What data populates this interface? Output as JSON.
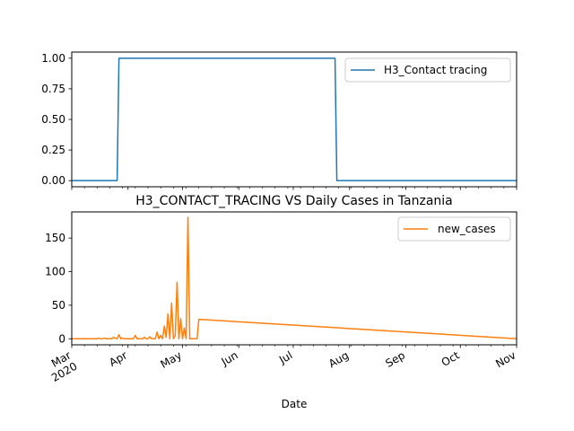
{
  "chart_data": [
    {
      "type": "line",
      "title": "",
      "xlabel": "",
      "ylabel": "",
      "x_range": [
        "2020-03-01",
        "2020-11-01"
      ],
      "ylim": [
        -0.05,
        1.05
      ],
      "yticks": [
        "0.00",
        "0.25",
        "0.50",
        "0.75",
        "1.00"
      ],
      "ytick_values": [
        0,
        0.25,
        0.5,
        0.75,
        1.0
      ],
      "grid": false,
      "legend_position": "top-right",
      "series": [
        {
          "name": "H3_Contact tracing",
          "color": "#1f77b4",
          "x": [
            "2020-03-01",
            "2020-03-26",
            "2020-03-27",
            "2020-07-24",
            "2020-07-25",
            "2020-11-01"
          ],
          "values": [
            0,
            0,
            1,
            1,
            0,
            0
          ]
        }
      ]
    },
    {
      "type": "line",
      "title": "H3_CONTACT_TRACING VS Daily Cases in Tanzania",
      "xlabel": "Date",
      "ylabel": "",
      "x_range": [
        "2020-03-01",
        "2020-11-01"
      ],
      "ylim": [
        -9,
        189
      ],
      "yticks": [
        "0",
        "50",
        "100",
        "150"
      ],
      "ytick_values": [
        0,
        50,
        100,
        150
      ],
      "xtick_labels": [
        "Mar\n2020",
        "Apr",
        "May",
        "Jun",
        "Jul",
        "Aug",
        "Sep",
        "Oct",
        "Nov"
      ],
      "xtick_dates": [
        "2020-03-01",
        "2020-04-01",
        "2020-05-01",
        "2020-06-01",
        "2020-07-01",
        "2020-08-01",
        "2020-09-01",
        "2020-10-01",
        "2020-11-01"
      ],
      "grid": false,
      "legend_position": "top-right",
      "series": [
        {
          "name": "new_cases",
          "color": "#ff7f0e",
          "x": [
            "2020-03-01",
            "2020-03-15",
            "2020-03-16",
            "2020-03-17",
            "2020-03-18",
            "2020-03-19",
            "2020-03-20",
            "2020-03-21",
            "2020-03-22",
            "2020-03-23",
            "2020-03-24",
            "2020-03-25",
            "2020-03-26",
            "2020-03-27",
            "2020-03-28",
            "2020-03-29",
            "2020-03-30",
            "2020-03-31",
            "2020-04-01",
            "2020-04-02",
            "2020-04-03",
            "2020-04-04",
            "2020-04-05",
            "2020-04-06",
            "2020-04-07",
            "2020-04-08",
            "2020-04-09",
            "2020-04-10",
            "2020-04-11",
            "2020-04-12",
            "2020-04-13",
            "2020-04-14",
            "2020-04-15",
            "2020-04-16",
            "2020-04-17",
            "2020-04-18",
            "2020-04-19",
            "2020-04-20",
            "2020-04-21",
            "2020-04-22",
            "2020-04-23",
            "2020-04-24",
            "2020-04-25",
            "2020-04-26",
            "2020-04-27",
            "2020-04-28",
            "2020-04-29",
            "2020-04-30",
            "2020-05-01",
            "2020-05-02",
            "2020-05-03",
            "2020-05-04",
            "2020-05-05",
            "2020-05-06",
            "2020-05-07",
            "2020-05-08",
            "2020-05-09",
            "2020-05-10",
            "2020-11-01"
          ],
          "values": [
            0,
            0,
            1,
            0,
            0,
            1,
            0,
            0,
            0,
            0,
            2,
            1,
            0,
            6,
            0,
            1,
            0,
            0,
            0,
            0,
            0,
            0,
            5,
            0,
            0,
            0,
            0,
            2,
            0,
            0,
            3,
            0,
            0,
            0,
            10,
            0,
            5,
            0,
            19,
            2,
            37,
            0,
            53,
            0,
            5,
            84,
            0,
            30,
            0,
            16,
            0,
            181,
            0,
            0,
            0,
            0,
            0,
            29,
            0
          ]
        }
      ]
    }
  ]
}
